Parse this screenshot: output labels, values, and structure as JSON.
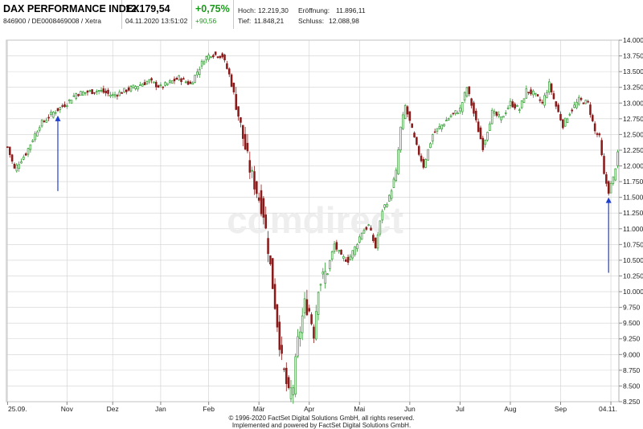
{
  "header": {
    "name": "DAX PERFORMANCE INDEX",
    "ids": "846900 / DE0008469008 / Xetra",
    "price": "12.179,54",
    "datetime": "04.11.2020 13:51:02",
    "change_pct": "+0,75%",
    "change_abs": "+90,56",
    "hoch_label": "Hoch:",
    "hoch_value": "12.219,30",
    "tief_label": "Tief:",
    "tief_value": "11.848,21",
    "eroeffnung_label": "Eröffnung:",
    "eroeffnung_value": "11.896,11",
    "schluss_label": "Schluss:",
    "schluss_value": "12.088,98"
  },
  "watermark": "comdirect",
  "footer": {
    "line1": "© 1996-2020 FactSet Digital Solutions GmbH, all rights reserved.",
    "line2": "Implemented and powered by FactSet Digital Solutions GmbH."
  },
  "colors": {
    "up": "#2e9a2e",
    "down": "#8b1a1a",
    "arrow": "#1f3fd0",
    "grid": "#d0d0d0"
  },
  "chart_data": {
    "type": "candlestick",
    "title": "DAX PERFORMANCE INDEX",
    "x_tick_labels": [
      "25.09.",
      "Nov",
      "Dez",
      "Jan",
      "Feb",
      "Mär",
      "Apr",
      "Mai",
      "Jun",
      "Jul",
      "Aug",
      "Sep",
      "04.11."
    ],
    "x_tick_index": [
      0,
      26,
      46,
      67,
      88,
      110,
      132,
      154,
      176,
      198,
      220,
      242,
      264
    ],
    "y_ticks": [
      "8.250",
      "8.500",
      "8.750",
      "9.000",
      "9.250",
      "9.500",
      "9.750",
      "10.000",
      "10.250",
      "10.500",
      "10.750",
      "11.000",
      "11.250",
      "11.500",
      "11.750",
      "12.000",
      "12.250",
      "12.500",
      "12.750",
      "13.000",
      "13.250",
      "13.500",
      "13.750",
      "14.000"
    ],
    "y_tick_values": [
      8250,
      8500,
      8750,
      9000,
      9250,
      9500,
      9750,
      10000,
      10250,
      10500,
      10750,
      11000,
      11250,
      11500,
      11750,
      12000,
      12250,
      12500,
      12750,
      13000,
      13250,
      13500,
      13750,
      14000
    ],
    "ylim": [
      8250,
      14000
    ],
    "grid": true,
    "close_anchors": [
      [
        0,
        12300
      ],
      [
        3,
        11950
      ],
      [
        8,
        12200
      ],
      [
        14,
        12650
      ],
      [
        20,
        12850
      ],
      [
        26,
        13000
      ],
      [
        30,
        13150
      ],
      [
        40,
        13200
      ],
      [
        46,
        13120
      ],
      [
        55,
        13250
      ],
      [
        62,
        13350
      ],
      [
        67,
        13250
      ],
      [
        75,
        13400
      ],
      [
        80,
        13300
      ],
      [
        86,
        13700
      ],
      [
        89,
        13780
      ],
      [
        94,
        13750
      ],
      [
        97,
        13450
      ],
      [
        100,
        13000
      ],
      [
        103,
        12450
      ],
      [
        106,
        11950
      ],
      [
        109,
        11600
      ],
      [
        112,
        11250
      ],
      [
        114,
        10700
      ],
      [
        117,
        9800
      ],
      [
        120,
        8900
      ],
      [
        123,
        8350
      ],
      [
        125,
        8500
      ],
      [
        127,
        9200
      ],
      [
        130,
        9800
      ],
      [
        132,
        9700
      ],
      [
        134,
        9350
      ],
      [
        136,
        10100
      ],
      [
        140,
        10350
      ],
      [
        143,
        10750
      ],
      [
        146,
        10550
      ],
      [
        149,
        10500
      ],
      [
        152,
        10700
      ],
      [
        155,
        10950
      ],
      [
        158,
        11050
      ],
      [
        161,
        10700
      ],
      [
        164,
        11300
      ],
      [
        167,
        11500
      ],
      [
        170,
        11900
      ],
      [
        172,
        12600
      ],
      [
        174,
        12950
      ],
      [
        176,
        12700
      ],
      [
        179,
        12300
      ],
      [
        182,
        12000
      ],
      [
        186,
        12500
      ],
      [
        190,
        12650
      ],
      [
        194,
        12800
      ],
      [
        198,
        12900
      ],
      [
        201,
        13250
      ],
      [
        205,
        12700
      ],
      [
        208,
        12300
      ],
      [
        212,
        12850
      ],
      [
        216,
        12750
      ],
      [
        220,
        13000
      ],
      [
        224,
        12900
      ],
      [
        227,
        13200
      ],
      [
        230,
        13150
      ],
      [
        234,
        13000
      ],
      [
        237,
        13300
      ],
      [
        240,
        12950
      ],
      [
        243,
        12650
      ],
      [
        246,
        12850
      ],
      [
        250,
        13050
      ],
      [
        254,
        13000
      ],
      [
        257,
        12550
      ],
      [
        259,
        12450
      ],
      [
        261,
        11850
      ],
      [
        263,
        11600
      ],
      [
        265,
        11800
      ],
      [
        267,
        12180
      ]
    ],
    "arrows": [
      {
        "x_index": 22,
        "from": 11600,
        "to": 12800
      },
      {
        "x_index": 263,
        "from": 10300,
        "to": 11500
      }
    ]
  }
}
